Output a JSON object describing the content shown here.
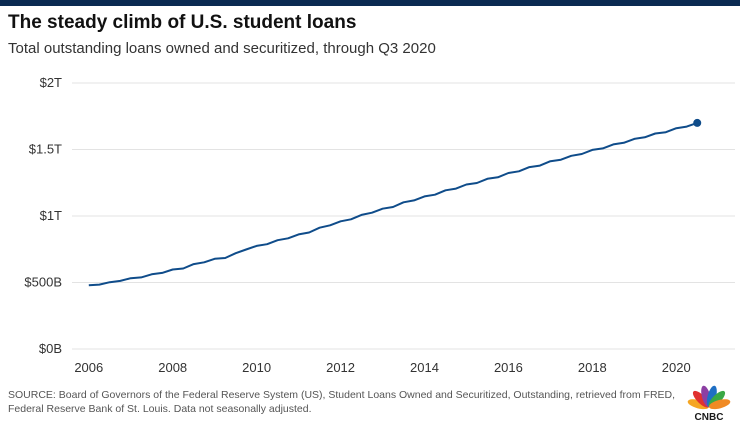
{
  "header": {
    "title": "The steady climb of U.S. student loans",
    "subtitle": "Total outstanding loans owned and securitized, through Q3 2020"
  },
  "chart_data": {
    "type": "line",
    "title": "The steady climb of U.S. student loans",
    "subtitle": "Total outstanding loans owned and securitized, through Q3 2020",
    "xlabel": "",
    "ylabel": "",
    "xlim": [
      2005.6,
      2021.4
    ],
    "ylim": [
      0,
      2000
    ],
    "x_ticks": [
      2006,
      2008,
      2010,
      2012,
      2014,
      2016,
      2018,
      2020
    ],
    "x_tick_labels": [
      "2006",
      "2008",
      "2010",
      "2012",
      "2014",
      "2016",
      "2018",
      "2020"
    ],
    "y_ticks": [
      0,
      500,
      1000,
      1500,
      2000
    ],
    "y_tick_labels": [
      "$0B",
      "$500B",
      "$1T",
      "$1.5T",
      "$2T"
    ],
    "grid": true,
    "series": [
      {
        "color": "#0f4c8a",
        "x": [
          2006.0,
          2006.25,
          2006.5,
          2006.75,
          2007.0,
          2007.25,
          2007.5,
          2007.75,
          2008.0,
          2008.25,
          2008.5,
          2008.75,
          2009.0,
          2009.25,
          2009.5,
          2009.75,
          2010.0,
          2010.25,
          2010.5,
          2010.75,
          2011.0,
          2011.25,
          2011.5,
          2011.75,
          2012.0,
          2012.25,
          2012.5,
          2012.75,
          2013.0,
          2013.25,
          2013.5,
          2013.75,
          2014.0,
          2014.25,
          2014.5,
          2014.75,
          2015.0,
          2015.25,
          2015.5,
          2015.75,
          2016.0,
          2016.25,
          2016.5,
          2016.75,
          2017.0,
          2017.25,
          2017.5,
          2017.75,
          2018.0,
          2018.25,
          2018.5,
          2018.75,
          2019.0,
          2019.25,
          2019.5,
          2019.75,
          2020.0,
          2020.25,
          2020.5
        ],
        "y": [
          480,
          484,
          502,
          512,
          532,
          538,
          562,
          572,
          598,
          605,
          638,
          652,
          678,
          684,
          720,
          748,
          775,
          788,
          818,
          832,
          862,
          876,
          912,
          930,
          960,
          975,
          1008,
          1025,
          1055,
          1068,
          1103,
          1117,
          1147,
          1160,
          1193,
          1206,
          1237,
          1248,
          1280,
          1291,
          1323,
          1336,
          1368,
          1379,
          1412,
          1423,
          1453,
          1466,
          1497,
          1508,
          1538,
          1550,
          1580,
          1592,
          1620,
          1630,
          1660,
          1672,
          1700
        ]
      }
    ],
    "last_point": [
      2020.5,
      1700
    ]
  },
  "footer": {
    "source": "SOURCE: Board of Governors of the Federal Reserve System (US), Student Loans Owned and Securitized, Outstanding, retrieved from FRED, Federal Reserve Bank of St. Louis. Data not seasonally adjusted.",
    "logo_text": "CNBC",
    "logo_colors": [
      "#f5a623",
      "#e0312f",
      "#8c3fa3",
      "#1f6fc4",
      "#3aa845",
      "#f08a24"
    ]
  }
}
